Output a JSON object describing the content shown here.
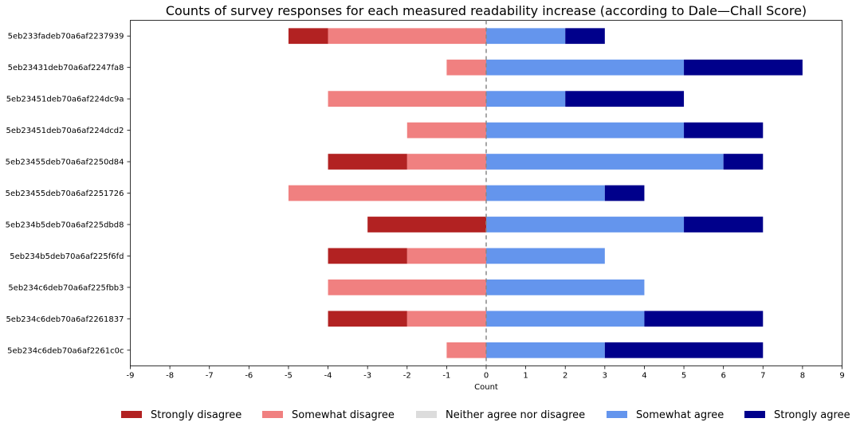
{
  "chart_data": {
    "type": "bar",
    "orientation": "horizontal-diverging-stacked",
    "title": "Counts of survey responses for each measured readability increase (according to Dale—Chall Score)",
    "xlabel": "Count",
    "ylabel": "",
    "xlim": [
      -9,
      9
    ],
    "xticks": [
      "-9",
      "-8",
      "-7",
      "-6",
      "-5",
      "-4",
      "-3",
      "-2",
      "-1",
      "0",
      "1",
      "2",
      "3",
      "4",
      "5",
      "6",
      "7",
      "8",
      "9"
    ],
    "zero_line": "dashed",
    "legend_placement": "bottom",
    "categories": [
      "5eb233fadeb70a6af2237939",
      "5eb23431deb70a6af2247fa8",
      "5eb23451deb70a6af224dc9a",
      "5eb23451deb70a6af224dcd2",
      "5eb23455deb70a6af2250d84",
      "5eb23455deb70a6af2251726",
      "5eb234b5deb70a6af225dbd8",
      "5eb234b5deb70a6af225f6fd",
      "5eb234c6deb70a6af225fbb3",
      "5eb234c6deb70a6af2261837",
      "5eb234c6deb70a6af2261c0c"
    ],
    "series": [
      {
        "name": "Strongly disagree",
        "color": "#b22222",
        "values": [
          1,
          0,
          0,
          0,
          2,
          0,
          3,
          2,
          0,
          2,
          0
        ]
      },
      {
        "name": "Somewhat disagree",
        "color": "#f08080",
        "values": [
          4,
          1,
          4,
          2,
          2,
          5,
          0,
          2,
          4,
          2,
          1
        ]
      },
      {
        "name": "Neither agree nor disagree",
        "color": "#dcdcdc",
        "values": [
          0,
          0,
          0,
          0,
          0,
          0,
          0,
          0,
          0,
          0,
          0
        ]
      },
      {
        "name": "Somewhat agree",
        "color": "#6495ed",
        "values": [
          2,
          5,
          2,
          5,
          6,
          3,
          5,
          3,
          4,
          4,
          3
        ]
      },
      {
        "name": "Strongly agree",
        "color": "#00008b",
        "values": [
          1,
          3,
          3,
          2,
          1,
          1,
          2,
          0,
          0,
          3,
          4
        ]
      }
    ]
  }
}
